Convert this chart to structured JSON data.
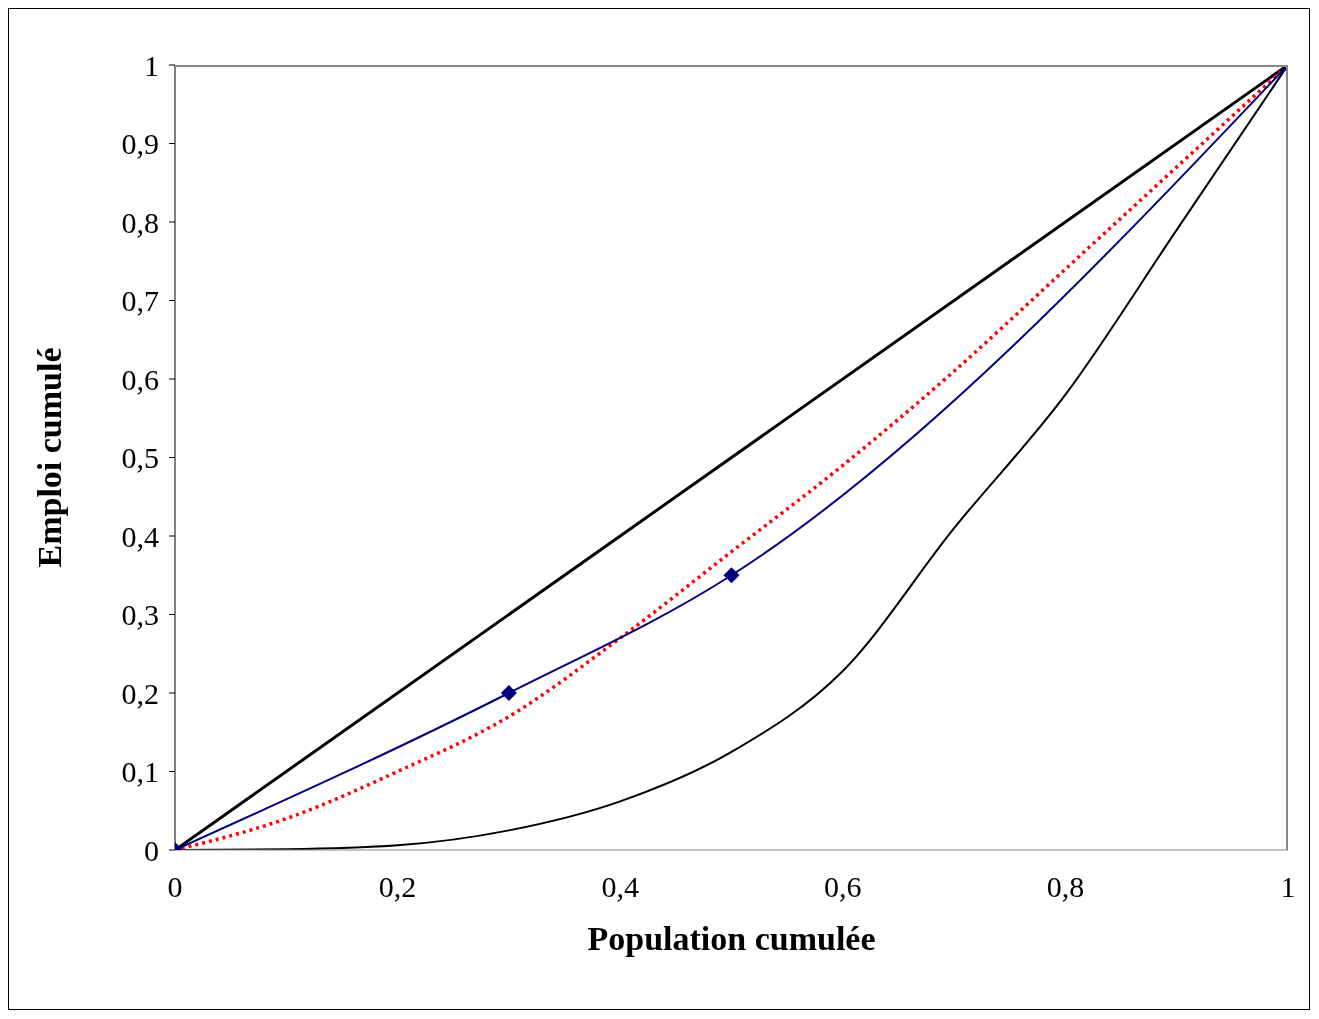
{
  "chart_data": {
    "type": "line",
    "xlabel": "Population cumulée",
    "ylabel": "Emploi cumulé",
    "xlim": [
      0,
      1
    ],
    "ylim": [
      0,
      1
    ],
    "xticks": [
      0,
      {
        "value": 0.2,
        "label": "0,2"
      },
      {
        "value": 0.4,
        "label": "0,4"
      },
      {
        "value": 0.6,
        "label": "0,6"
      },
      {
        "value": 0.8,
        "label": "0,8"
      },
      1
    ],
    "yticks": [
      0,
      {
        "value": 0.1,
        "label": "0,1"
      },
      {
        "value": 0.2,
        "label": "0,2"
      },
      {
        "value": 0.3,
        "label": "0,3"
      },
      {
        "value": 0.4,
        "label": "0,4"
      },
      {
        "value": 0.5,
        "label": "0,5"
      },
      {
        "value": 0.6,
        "label": "0,6"
      },
      {
        "value": 0.7,
        "label": "0,7"
      },
      {
        "value": 0.8,
        "label": "0,8"
      },
      {
        "value": 0.9,
        "label": "0,9"
      },
      1
    ],
    "series": [
      {
        "color": "#000000",
        "x": [
          0,
          1
        ],
        "values": [
          0,
          1
        ],
        "marker": "none",
        "line_style": "solid"
      },
      {
        "color": "#000000",
        "x": [
          0,
          0.1,
          0.2,
          0.3,
          0.4,
          0.5,
          0.6,
          0.7,
          0.8,
          0.9,
          1
        ],
        "values": [
          0,
          0.001,
          0.006,
          0.025,
          0.062,
          0.125,
          0.228,
          0.41,
          0.58,
          0.79,
          1
        ],
        "marker": "none",
        "line_style": "solid"
      },
      {
        "color": "#ff0000",
        "x": [
          0,
          0.1,
          0.2,
          0.3,
          0.4,
          0.5,
          0.6,
          0.7,
          0.8,
          0.9,
          1
        ],
        "values": [
          0,
          0.04,
          0.1,
          0.17,
          0.27,
          0.38,
          0.49,
          0.61,
          0.74,
          0.87,
          1
        ],
        "marker": "none",
        "line_style": "dotted"
      },
      {
        "color": "#000080",
        "x": [
          0,
          0.3,
          0.5,
          1
        ],
        "values": [
          0,
          0.2,
          0.35,
          1
        ],
        "marker": "diamond",
        "line_style": "solid"
      }
    ]
  }
}
